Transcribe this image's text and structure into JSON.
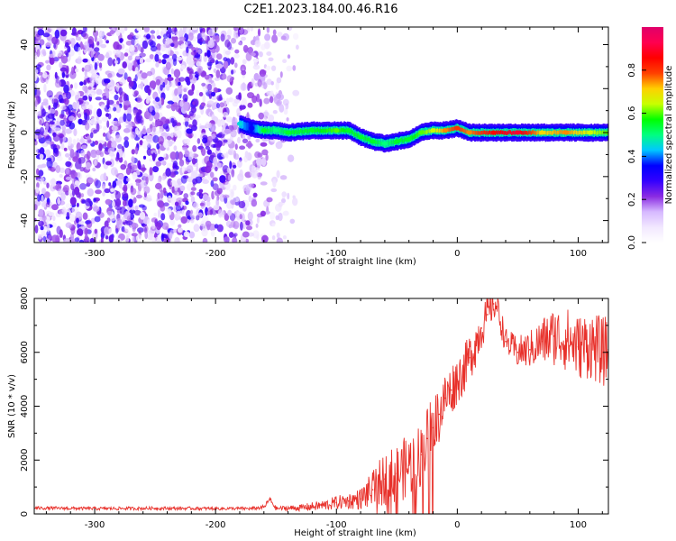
{
  "figure": {
    "title": "C2E1.2023.184.00.46.R16"
  },
  "chart_data": [
    {
      "type": "heatmap",
      "title": "C2E1.2023.184.00.46.R16",
      "xlabel": "Height of straight line (km)",
      "ylabel": "Frequency (Hz)",
      "xlim": [
        -350,
        125
      ],
      "ylim": [
        -50,
        48
      ],
      "x_ticks": [
        -300,
        -200,
        -100,
        0,
        100
      ],
      "y_ticks": [
        -40,
        -20,
        0,
        20,
        40
      ],
      "colorbar": {
        "label": "Normalized spectral amplitude",
        "range": [
          0,
          1
        ],
        "ticks": [
          "0.0",
          "0.2",
          "0.4",
          "0.6",
          "0.8"
        ],
        "tick_values": [
          0.0,
          0.2,
          0.4,
          0.6,
          0.8
        ],
        "colors": [
          "#ffffff",
          "#f2e8ff",
          "#d6b8ff",
          "#8a2be2",
          "#3300ff",
          "#0000ff",
          "#00c8ff",
          "#00ff80",
          "#00ff00",
          "#c8ff00",
          "#ffd000",
          "#ff4000",
          "#ff0000",
          "#ff0050",
          "#e0006a"
        ]
      },
      "noise_region": {
        "x_start": -350,
        "x_end": -130,
        "amplitude_range": [
          0.05,
          0.3
        ]
      },
      "signal_ridge": [
        {
          "x": -180,
          "freq": 4,
          "amp": 0.45
        },
        {
          "x": -170,
          "freq": 2,
          "amp": 0.35
        },
        {
          "x": -160,
          "freq": 1,
          "amp": 0.55
        },
        {
          "x": -150,
          "freq": 1,
          "amp": 0.5
        },
        {
          "x": -140,
          "freq": 0,
          "amp": 0.55
        },
        {
          "x": -120,
          "freq": 1,
          "amp": 0.55
        },
        {
          "x": -100,
          "freq": 1,
          "amp": 0.6
        },
        {
          "x": -90,
          "freq": 1,
          "amp": 0.55
        },
        {
          "x": -80,
          "freq": -2,
          "amp": 0.55
        },
        {
          "x": -70,
          "freq": -4,
          "amp": 0.55
        },
        {
          "x": -60,
          "freq": -5,
          "amp": 0.5
        },
        {
          "x": -50,
          "freq": -4,
          "amp": 0.55
        },
        {
          "x": -40,
          "freq": -3,
          "amp": 0.55
        },
        {
          "x": -30,
          "freq": 0,
          "amp": 0.6
        },
        {
          "x": -20,
          "freq": 1,
          "amp": 0.65
        },
        {
          "x": -10,
          "freq": 1,
          "amp": 0.75
        },
        {
          "x": 0,
          "freq": 2,
          "amp": 0.8
        },
        {
          "x": 10,
          "freq": 0,
          "amp": 0.75
        },
        {
          "x": 30,
          "freq": 0,
          "amp": 0.85
        },
        {
          "x": 50,
          "freq": 0,
          "amp": 0.9
        },
        {
          "x": 70,
          "freq": 0,
          "amp": 0.7
        },
        {
          "x": 90,
          "freq": 0,
          "amp": 0.75
        },
        {
          "x": 110,
          "freq": 0,
          "amp": 0.65
        },
        {
          "x": 125,
          "freq": 0,
          "amp": 0.6
        }
      ],
      "ridge_width_hz": 3
    },
    {
      "type": "line",
      "xlabel": "Height of straight line (km)",
      "ylabel": "SNR (10 * v/v)",
      "xlim": [
        -350,
        125
      ],
      "ylim": [
        0,
        8000
      ],
      "x_ticks": [
        -300,
        -200,
        -100,
        0,
        100
      ],
      "y_ticks": [
        0,
        2000,
        4000,
        6000,
        8000
      ],
      "series": [
        {
          "color": "#e8312b",
          "x": [
            -350,
            -300,
            -250,
            -200,
            -170,
            -160,
            -155,
            -150,
            -130,
            -110,
            -100,
            -90,
            -80,
            -70,
            -60,
            -50,
            -40,
            -30,
            -25,
            -20,
            -15,
            -10,
            -5,
            0,
            5,
            10,
            15,
            20,
            25,
            30,
            33,
            40,
            50,
            60,
            70,
            80,
            90,
            100,
            110,
            120,
            125
          ],
          "y": [
            220,
            200,
            210,
            200,
            200,
            250,
            550,
            200,
            230,
            320,
            420,
            480,
            560,
            900,
            1300,
            1500,
            1800,
            2200,
            2800,
            3200,
            3700,
            4300,
            4600,
            5000,
            5300,
            5800,
            6300,
            6900,
            7400,
            7800,
            7700,
            6400,
            6000,
            6100,
            6400,
            6600,
            6500,
            6200,
            6300,
            6000,
            6100
          ],
          "noise_amplitude": [
            60,
            60,
            60,
            60,
            60,
            80,
            100,
            80,
            120,
            200,
            250,
            300,
            400,
            700,
            1000,
            1100,
            1200,
            1200,
            1200,
            1200,
            1100,
            1000,
            1000,
            900,
            900,
            900,
            900,
            800,
            700,
            600,
            600,
            500,
            600,
            700,
            900,
            1100,
            1200,
            1200,
            1300,
            1300,
            1300
          ]
        }
      ]
    }
  ]
}
